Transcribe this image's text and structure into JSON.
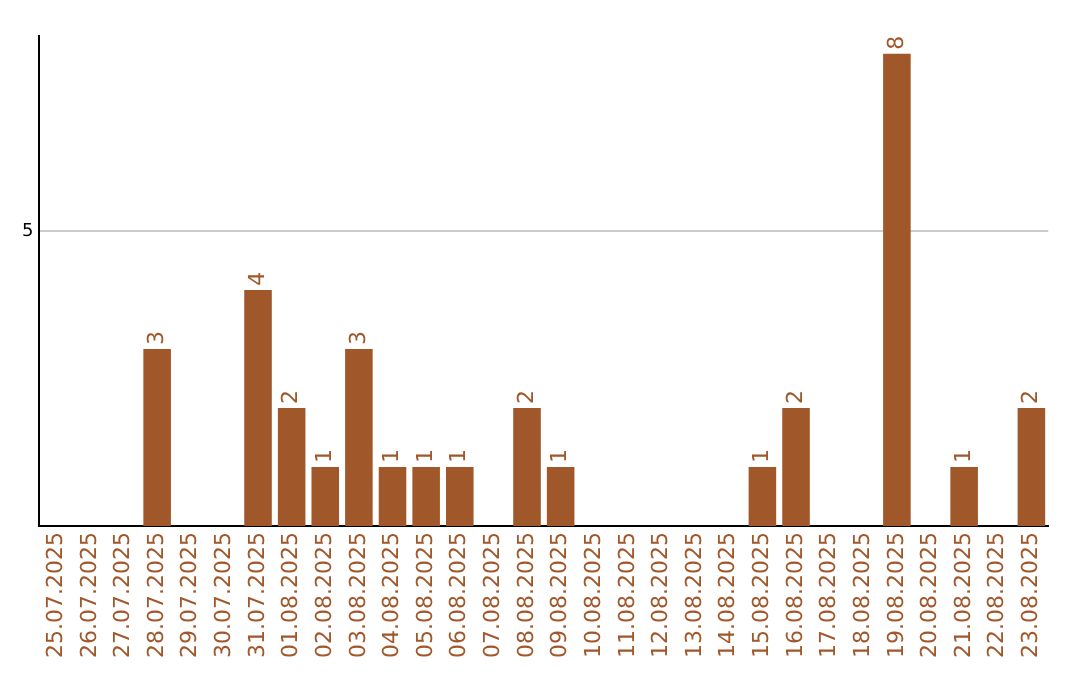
{
  "chart_data": {
    "type": "bar",
    "categories": [
      "25.07.2025",
      "26.07.2025",
      "27.07.2025",
      "28.07.2025",
      "29.07.2025",
      "30.07.2025",
      "31.07.2025",
      "01.08.2025",
      "02.08.2025",
      "03.08.2025",
      "04.08.2025",
      "05.08.2025",
      "06.08.2025",
      "07.08.2025",
      "08.08.2025",
      "09.08.2025",
      "10.08.2025",
      "11.08.2025",
      "12.08.2025",
      "13.08.2025",
      "14.08.2025",
      "15.08.2025",
      "16.08.2025",
      "17.08.2025",
      "18.08.2025",
      "19.08.2025",
      "20.08.2025",
      "21.08.2025",
      "22.08.2025",
      "23.08.2025"
    ],
    "values": [
      0,
      0,
      0,
      3,
      0,
      0,
      4,
      2,
      1,
      3,
      1,
      1,
      1,
      0,
      2,
      1,
      0,
      0,
      0,
      0,
      0,
      1,
      2,
      0,
      0,
      8,
      0,
      1,
      0,
      2
    ],
    "value_labels": [
      null,
      null,
      null,
      "3",
      null,
      null,
      "4",
      "2",
      "1",
      "3",
      "1",
      "1",
      "1",
      null,
      "2",
      "1",
      null,
      null,
      null,
      null,
      null,
      "1",
      "2",
      null,
      null,
      "8",
      null,
      "1",
      null,
      "2"
    ],
    "color": "#a0572a",
    "ylim": [
      0,
      8.3
    ],
    "yticks": [
      5
    ],
    "grid": "y",
    "legend": false
  }
}
